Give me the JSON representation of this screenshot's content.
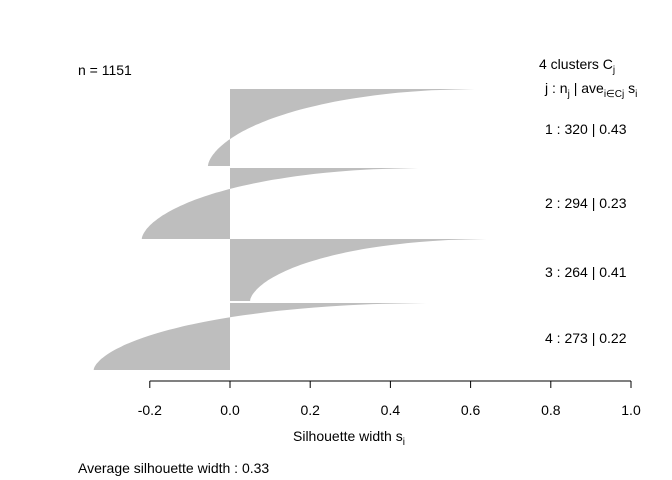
{
  "chart_data": {
    "type": "silhouette",
    "n_label": "n = 1151",
    "header": {
      "clusters": "4  clusters  C",
      "clusters_sub": "j",
      "cols": "j :  n",
      "cols_sub": "j",
      "ave": " | ave",
      "ave_sub": "i∈Cj",
      "si": "  s",
      "si_sub": "i"
    },
    "clusters": [
      {
        "j": 1,
        "n": 320,
        "avg": 0.43,
        "label": "1 :   320  |  0.43",
        "max": 0.61,
        "min": -0.055
      },
      {
        "j": 2,
        "n": 294,
        "avg": 0.23,
        "label": "2 :   294  |  0.23",
        "max": 0.47,
        "min": -0.22
      },
      {
        "j": 3,
        "n": 264,
        "avg": 0.41,
        "label": "3 :   264  |  0.41",
        "max": 0.64,
        "min": 0.05
      },
      {
        "j": 4,
        "n": 273,
        "avg": 0.22,
        "label": "4 :   273  |  0.22",
        "max": 0.49,
        "min": -0.34
      }
    ],
    "xlim": [
      -0.4,
      1.0
    ],
    "xticks": [
      "-0.2",
      "0.0",
      "0.2",
      "0.4",
      "0.6",
      "0.8",
      "1.0"
    ],
    "xtick_values": [
      -0.2,
      0.0,
      0.2,
      0.4,
      0.6,
      0.8,
      1.0
    ],
    "xlabel": "Silhouette width s",
    "xlabel_sub": "i",
    "footer": "Average silhouette width :  0.33",
    "bar_color": "#bebebe"
  }
}
